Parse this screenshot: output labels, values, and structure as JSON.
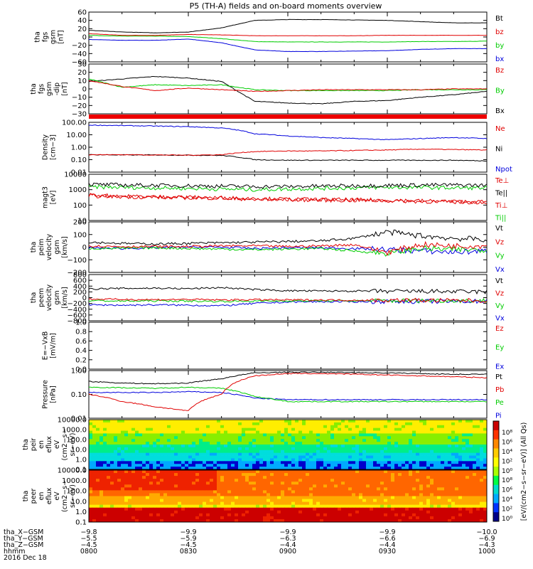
{
  "title": "P5 (TH-A) fields and on-board moments overview",
  "colors": {
    "black": "#000000",
    "red": "#e00000",
    "green": "#00cc00",
    "blue": "#0000dd",
    "cyan_fill": "#00e0e0"
  },
  "panels": [
    {
      "id": "fgs-mag",
      "ylabel": [
        "tha",
        "fgs",
        "gsm",
        "[nT]"
      ],
      "yticks": [
        "60",
        "40",
        "20",
        "0",
        "−20",
        "−40",
        "−60"
      ],
      "ylim": [
        -60,
        60
      ],
      "legend": [
        {
          "text": "Bt",
          "color": "#000000"
        },
        {
          "text": "bz",
          "color": "#e00000"
        },
        {
          "text": "by",
          "color": "#00cc00"
        },
        {
          "text": "bx",
          "color": "#0000dd"
        }
      ]
    },
    {
      "id": "fgs-dip",
      "ylabel": [
        "tha",
        "fgs",
        "gsm",
        "-dip",
        "[nT]"
      ],
      "yticks": [
        "30",
        "20",
        "10",
        "0",
        "−10",
        "−20",
        "−30"
      ],
      "ylim": [
        -30,
        30
      ],
      "legend": [
        {
          "text": "Bz",
          "color": "#e00000"
        },
        {
          "text": "By",
          "color": "#00cc00"
        },
        {
          "text": "Bx",
          "color": "#000000"
        }
      ]
    },
    {
      "id": "density",
      "ylabel": [
        "Density",
        "[cm−3]"
      ],
      "yticks": [
        "100.00",
        "10.00",
        "1.00",
        "0.10",
        "0.01"
      ],
      "scale": "log",
      "ylim": [
        0.01,
        100
      ],
      "legend": [
        {
          "text": "Ne",
          "color": "#e00000"
        },
        {
          "text": "Ni",
          "color": "#000000"
        },
        {
          "text": "Npot",
          "color": "#0000dd"
        }
      ]
    },
    {
      "id": "temperature",
      "ylabel": [
        "magt3",
        "[eV]"
      ],
      "yticks": [
        "10000",
        "1000",
        "100",
        "10"
      ],
      "scale": "log",
      "ylim": [
        10,
        10000
      ],
      "legend": [
        {
          "text": "Te⊥",
          "color": "#e00000"
        },
        {
          "text": "Te||",
          "color": "#000000"
        },
        {
          "text": "Ti⊥",
          "color": "#e00000"
        },
        {
          "text": "Ti||",
          "color": "#00cc00"
        }
      ]
    },
    {
      "id": "peim-velocity",
      "ylabel": [
        "tha",
        "peim",
        "velocity",
        "gsm",
        "[km/s]"
      ],
      "yticks": [
        "200",
        "100",
        "0",
        "−100",
        "−200"
      ],
      "ylim": [
        -200,
        200
      ],
      "legend": [
        {
          "text": "Vt",
          "color": "#000000"
        },
        {
          "text": "Vz",
          "color": "#e00000"
        },
        {
          "text": "Vy",
          "color": "#00cc00"
        },
        {
          "text": "Vx",
          "color": "#0000dd"
        }
      ]
    },
    {
      "id": "peem-velocity",
      "ylabel": [
        "tha",
        "peem",
        "velocity",
        "gsm",
        "[km/s]"
      ],
      "yticks": [
        "800",
        "600",
        "400",
        "200",
        "0",
        "−200",
        "−400",
        "−600",
        "−800"
      ],
      "ylim": [
        -800,
        800
      ],
      "legend": [
        {
          "text": "Vt",
          "color": "#000000"
        },
        {
          "text": "Vz",
          "color": "#e00000"
        },
        {
          "text": "Vy",
          "color": "#00cc00"
        },
        {
          "text": "Vx",
          "color": "#0000dd"
        }
      ]
    },
    {
      "id": "efield",
      "ylabel": [
        "E=−VxB",
        "[mV/m]"
      ],
      "yticks": [
        "1.0",
        "0.8",
        "0.6",
        "0.4",
        "0.2",
        "0.0"
      ],
      "ylim": [
        0,
        1
      ],
      "legend": [
        {
          "text": "Ez",
          "color": "#e00000"
        },
        {
          "text": "Ey",
          "color": "#00cc00"
        },
        {
          "text": "Ex",
          "color": "#0000dd"
        }
      ]
    },
    {
      "id": "pressure",
      "ylabel": [
        "Pressure",
        "[nPa]"
      ],
      "yticks": [
        "1.00",
        "0.10",
        "0.01"
      ],
      "scale": "log",
      "ylim": [
        0.01,
        1
      ],
      "legend": [
        {
          "text": "Pt",
          "color": "#000000"
        },
        {
          "text": "Pb",
          "color": "#e00000"
        },
        {
          "text": "Pe",
          "color": "#00cc00"
        },
        {
          "text": "Pi",
          "color": "#0000dd"
        }
      ]
    },
    {
      "id": "peir-spec",
      "ylabel": [
        "tha",
        "peir",
        "en",
        "eflux",
        "eV",
        "(cm2−s−",
        "sr−eV)"
      ],
      "yticks": [
        "10000.0",
        "1000.0",
        "100.0",
        "10.0",
        "1.0",
        "0.1"
      ],
      "scale": "log",
      "ylim": [
        0.1,
        10000
      ]
    },
    {
      "id": "peer-spec",
      "ylabel": [
        "tha",
        "peer",
        "en",
        "eflux",
        "eV",
        "(cm2−s−",
        "sr−eV)"
      ],
      "yticks": [
        "10000.0",
        "1000.0",
        "100.0",
        "10.0",
        "1.0",
        "0.1"
      ],
      "scale": "log",
      "ylim": [
        0.1,
        10000
      ]
    }
  ],
  "colorbar": {
    "ticks": [
      "10⁸",
      "10⁶",
      "10⁴",
      "10²",
      "10⁰",
      "10⁸",
      "10⁶",
      "10⁴",
      "10²",
      "10⁰"
    ],
    "label": "[eV/(cm2−s−sr−eV)] (All Qs)"
  },
  "time_axis": {
    "ticks": [
      "0800",
      "0830",
      "0900",
      "0930",
      "1000"
    ],
    "row_labels": [
      "tha_X−GSM",
      "tha_Y−GSM",
      "tha_Z−GSM",
      "hhmm",
      "2016 Dec 18"
    ],
    "x_gsm": [
      "−9.8",
      "−9.9",
      "−9.9",
      "−9.9",
      "−10.0"
    ],
    "y_gsm": [
      "−5.5",
      "−5.9",
      "−6.3",
      "−6.6",
      "−6.9"
    ],
    "z_gsm": [
      "−4.5",
      "−4.5",
      "−4.4",
      "−4.4",
      "−4.3"
    ]
  },
  "chart_data": [
    {
      "type": "line",
      "title": "P5 (TH-A) fields and on-board moments overview",
      "ylabel": "tha fgs gsm [nT]",
      "x": [
        "0800",
        "0810",
        "0820",
        "0830",
        "0840",
        "0850",
        "0900",
        "0910",
        "0920",
        "0930",
        "0940",
        "0950",
        "1000"
      ],
      "series": [
        {
          "name": "Bt",
          "values": [
            16,
            12,
            10,
            12,
            22,
            40,
            42,
            42,
            41,
            40,
            37,
            34,
            34
          ]
        },
        {
          "name": "bz",
          "values": [
            8,
            4,
            4,
            6,
            5,
            3,
            3,
            3,
            3,
            4,
            4,
            4,
            4
          ]
        },
        {
          "name": "by",
          "values": [
            4,
            2,
            2,
            1,
            -4,
            -11,
            -12,
            -12,
            -12,
            -12,
            -11,
            -11,
            -10
          ]
        },
        {
          "name": "bx",
          "values": [
            -6,
            -8,
            -8,
            -5,
            -14,
            -31,
            -35,
            -35,
            -34,
            -33,
            -30,
            -28,
            -28
          ]
        }
      ],
      "ylim": [
        -60,
        60
      ]
    },
    {
      "type": "line",
      "ylabel": "tha fgs gsm -dip [nT]",
      "x": [
        "0800",
        "0810",
        "0820",
        "0830",
        "0840",
        "0850",
        "0900",
        "0910",
        "0920",
        "0930",
        "0940",
        "0950",
        "1000"
      ],
      "series": [
        {
          "name": "Bz",
          "values": [
            10,
            3,
            -2,
            1,
            -1,
            -3,
            -2,
            -1,
            -1,
            -1,
            -1,
            0,
            0
          ]
        },
        {
          "name": "By",
          "values": [
            12,
            2,
            5,
            4,
            5,
            -1,
            -2,
            -2,
            -2,
            -2,
            -1,
            -1,
            -1
          ]
        },
        {
          "name": "Bx",
          "values": [
            9,
            12,
            15,
            13,
            9,
            -15,
            -17,
            -18,
            -15,
            -14,
            -10,
            -7,
            -3
          ]
        }
      ],
      "ylim": [
        -30,
        30
      ]
    },
    {
      "type": "line",
      "ylabel": "Density [cm-3]",
      "x": [
        "0800",
        "0810",
        "0820",
        "0830",
        "0840",
        "0850",
        "0900",
        "0910",
        "0920",
        "0930",
        "0940",
        "0950",
        "1000"
      ],
      "series": [
        {
          "name": "Ne",
          "values": [
            0.25,
            0.25,
            0.24,
            0.23,
            0.25,
            0.45,
            0.5,
            0.5,
            0.55,
            0.6,
            0.7,
            0.65,
            0.6
          ]
        },
        {
          "name": "Ni",
          "values": [
            0.25,
            0.24,
            0.24,
            0.23,
            0.22,
            0.1,
            0.09,
            0.09,
            0.09,
            0.09,
            0.09,
            0.09,
            0.08
          ]
        },
        {
          "name": "Npot",
          "values": [
            60,
            55,
            50,
            45,
            35,
            12,
            8,
            6,
            5,
            4,
            5,
            6,
            5
          ]
        }
      ],
      "scale": "log",
      "ylim": [
        0.01,
        100
      ]
    },
    {
      "type": "line",
      "ylabel": "magt3 [eV]",
      "x": [
        "0800",
        "0810",
        "0820",
        "0830",
        "0840",
        "0850",
        "0900",
        "0910",
        "0920",
        "0930",
        "0940",
        "0950",
        "1000"
      ],
      "series": [
        {
          "name": "Te⊥",
          "values": [
            450,
            380,
            350,
            320,
            300,
            260,
            240,
            230,
            220,
            210,
            190,
            170,
            160
          ]
        },
        {
          "name": "Te||",
          "values": [
            2200,
            2000,
            1900,
            1800,
            1700,
            1600,
            1600,
            1700,
            1800,
            1900,
            2000,
            2000,
            1900
          ]
        },
        {
          "name": "Ti⊥",
          "values": [
            400,
            350,
            320,
            300,
            280,
            240,
            220,
            210,
            200,
            190,
            170,
            160,
            150
          ]
        },
        {
          "name": "Ti||",
          "values": [
            1500,
            1400,
            1300,
            1200,
            1100,
            1000,
            1100,
            1200,
            1300,
            1400,
            1400,
            1300,
            1300
          ]
        }
      ],
      "scale": "log",
      "ylim": [
        10,
        10000
      ]
    },
    {
      "type": "line",
      "ylabel": "tha peim velocity gsm [km/s]",
      "x": [
        "0800",
        "0810",
        "0820",
        "0830",
        "0840",
        "0850",
        "0900",
        "0910",
        "0920",
        "0930",
        "0940",
        "0950",
        "1000"
      ],
      "series": [
        {
          "name": "Vt",
          "values": [
            40,
            30,
            25,
            30,
            35,
            40,
            45,
            50,
            70,
            120,
            90,
            70,
            60
          ]
        },
        {
          "name": "Vz",
          "values": [
            10,
            5,
            5,
            5,
            10,
            10,
            5,
            10,
            20,
            -40,
            20,
            10,
            10
          ]
        },
        {
          "name": "Vy",
          "values": [
            -10,
            -10,
            -5,
            -10,
            -15,
            -20,
            -15,
            -10,
            -30,
            -50,
            -10,
            -20,
            -20
          ]
        },
        {
          "name": "Vx",
          "values": [
            -5,
            -10,
            -5,
            0,
            0,
            -10,
            -5,
            -5,
            -10,
            -20,
            -30,
            -40,
            -30
          ]
        }
      ],
      "ylim": [
        -200,
        200
      ]
    },
    {
      "type": "line",
      "ylabel": "tha peem velocity gsm [km/s]",
      "x": [
        "0800",
        "0810",
        "0820",
        "0830",
        "0840",
        "0850",
        "0900",
        "0910",
        "0920",
        "0930",
        "0940",
        "0950",
        "1000"
      ],
      "series": [
        {
          "name": "Vt",
          "values": [
            300,
            320,
            330,
            310,
            350,
            280,
            240,
            230,
            230,
            220,
            220,
            210,
            200
          ]
        },
        {
          "name": "Vz",
          "values": [
            -50,
            -60,
            -70,
            -60,
            -80,
            -70,
            -80,
            -80,
            -90,
            -90,
            -90,
            -100,
            -100
          ]
        },
        {
          "name": "Vy",
          "values": [
            -100,
            -120,
            -110,
            -120,
            -130,
            -120,
            -110,
            -110,
            -110,
            -110,
            -100,
            -100,
            -100
          ]
        },
        {
          "name": "Vx",
          "values": [
            -250,
            -260,
            -250,
            -260,
            -280,
            -200,
            -150,
            -140,
            -140,
            -130,
            -130,
            -130,
            -120
          ]
        }
      ],
      "ylim": [
        -800,
        800
      ]
    },
    {
      "type": "line",
      "ylabel": "E=-VxB [mV/m]",
      "x": [],
      "series": [
        {
          "name": "Ez",
          "values": []
        },
        {
          "name": "Ey",
          "values": []
        },
        {
          "name": "Ex",
          "values": []
        }
      ],
      "ylim": [
        0,
        1
      ]
    },
    {
      "type": "line",
      "ylabel": "Pressure [nPa]",
      "x": [
        "0800",
        "0810",
        "0820",
        "0830",
        "0840",
        "0850",
        "0900",
        "0910",
        "0920",
        "0930",
        "0940",
        "0950",
        "1000"
      ],
      "series": [
        {
          "name": "Pt",
          "values": [
            0.35,
            0.3,
            0.28,
            0.3,
            0.45,
            0.8,
            0.85,
            0.85,
            0.82,
            0.8,
            0.75,
            0.7,
            0.7
          ]
        },
        {
          "name": "Pb",
          "values": [
            0.1,
            0.05,
            0.03,
            0.02,
            0.1,
            0.6,
            0.75,
            0.75,
            0.7,
            0.65,
            0.6,
            0.55,
            0.5
          ]
        },
        {
          "name": "Pe",
          "values": [
            0.2,
            0.19,
            0.18,
            0.2,
            0.18,
            0.08,
            0.05,
            0.05,
            0.05,
            0.05,
            0.05,
            0.05,
            0.05
          ]
        },
        {
          "name": "Pi",
          "values": [
            0.12,
            0.12,
            0.12,
            0.13,
            0.12,
            0.07,
            0.06,
            0.06,
            0.06,
            0.06,
            0.06,
            0.06,
            0.06
          ]
        }
      ],
      "scale": "log",
      "ylim": [
        0.01,
        1
      ]
    },
    {
      "type": "heatmap",
      "ylabel": "tha peir en eflux eV (cm2-s-sr-eV)",
      "x": [
        "0800",
        "0830",
        "0900",
        "0930",
        "1000"
      ],
      "y": [
        0.1,
        1,
        10,
        100,
        1000,
        10000
      ],
      "scale": "log"
    },
    {
      "type": "heatmap",
      "ylabel": "tha peer en eflux eV (cm2-s-sr-eV)",
      "x": [
        "0800",
        "0830",
        "0900",
        "0930",
        "1000"
      ],
      "y": [
        0.1,
        1,
        10,
        100,
        1000,
        10000
      ],
      "scale": "log"
    }
  ]
}
